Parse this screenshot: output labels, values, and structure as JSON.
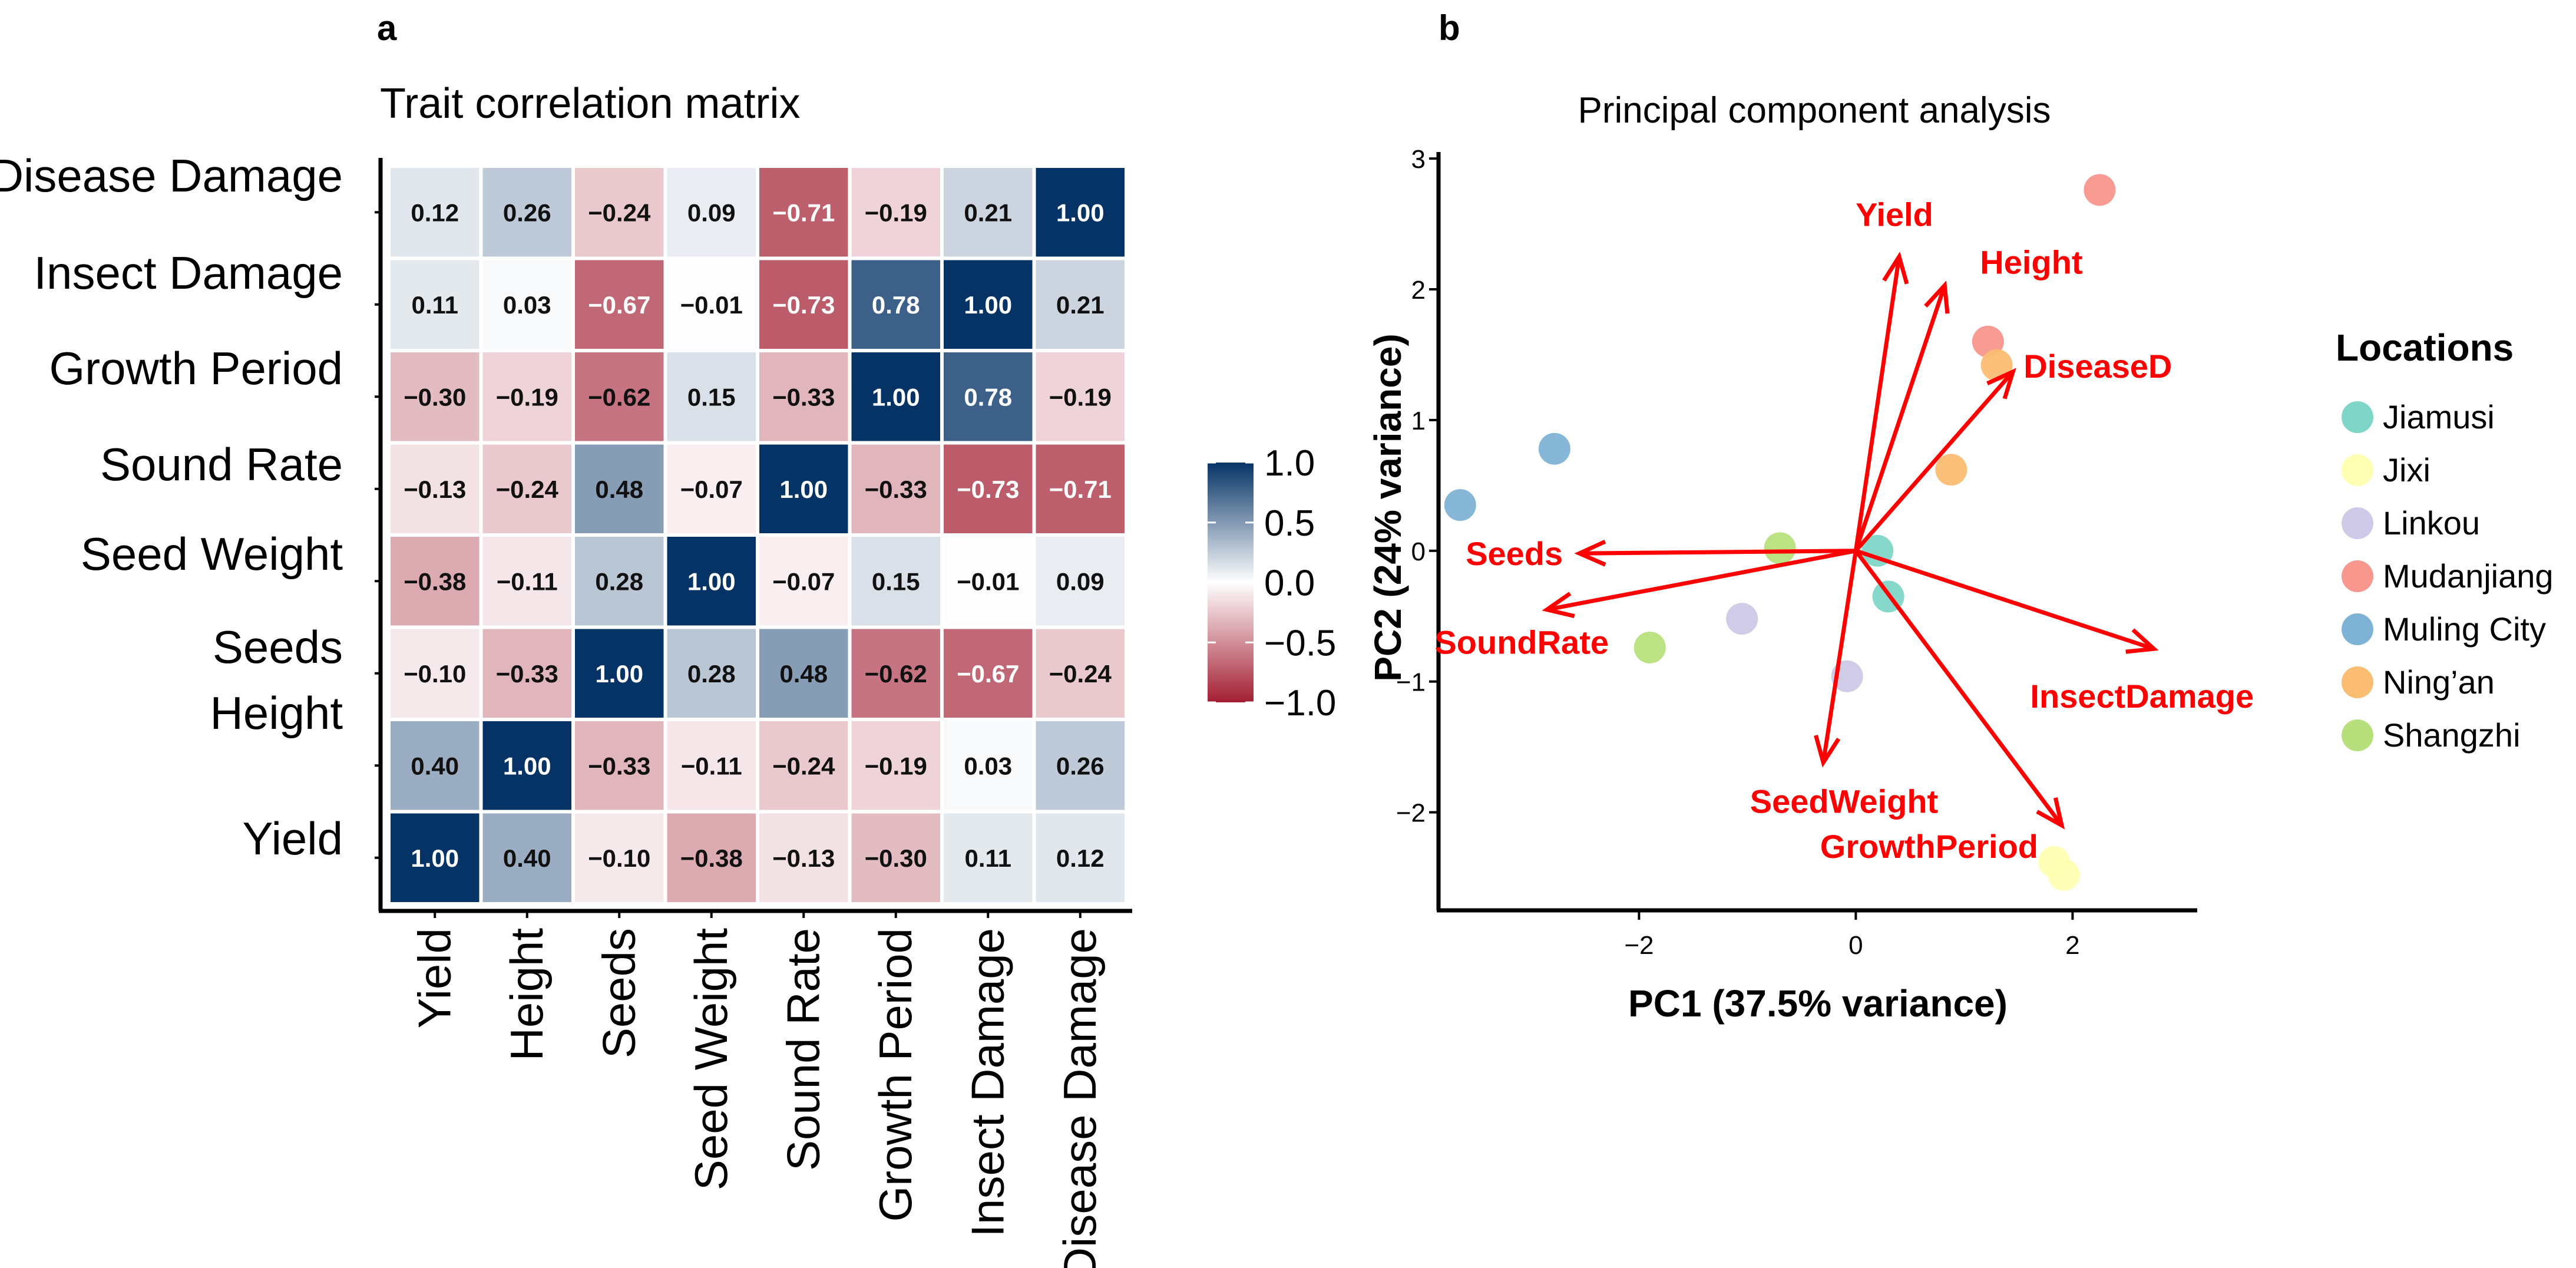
{
  "panels": {
    "a_label": "a",
    "b_label": "b"
  },
  "chart_data": [
    {
      "type": "heatmap",
      "title": "Trait correlation matrix",
      "row_labels_top_to_bottom": [
        "Disease Damage",
        "Insect Damage",
        "Growth Period",
        "Sound Rate",
        "Seed Weight",
        "Seeds",
        "Height",
        "Yield"
      ],
      "col_labels": [
        "Yield",
        "Height",
        "Seeds",
        "Seed Weight",
        "Sound Rate",
        "Growth Period",
        "Insect Damage",
        "Disease Damage"
      ],
      "values": [
        [
          0.12,
          0.26,
          -0.24,
          0.09,
          -0.71,
          -0.19,
          0.21,
          1.0
        ],
        [
          0.11,
          0.03,
          -0.67,
          -0.01,
          -0.73,
          0.78,
          1.0,
          0.21
        ],
        [
          -0.3,
          -0.19,
          -0.62,
          0.15,
          -0.33,
          1.0,
          0.78,
          -0.19
        ],
        [
          -0.13,
          -0.24,
          0.48,
          -0.07,
          1.0,
          -0.33,
          -0.73,
          -0.71
        ],
        [
          -0.38,
          -0.11,
          0.28,
          1.0,
          -0.07,
          0.15,
          -0.01,
          0.09
        ],
        [
          -0.1,
          -0.33,
          1.0,
          0.28,
          0.48,
          -0.62,
          -0.67,
          -0.24
        ],
        [
          0.4,
          1.0,
          -0.33,
          -0.11,
          -0.24,
          -0.19,
          0.03,
          0.26
        ],
        [
          1.0,
          0.4,
          -0.1,
          -0.38,
          -0.13,
          -0.3,
          0.11,
          0.12
        ]
      ],
      "colorbar": {
        "range": [
          -1.0,
          1.0
        ],
        "ticks": [
          "1.0",
          "0.5",
          "0.0",
          "−0.5",
          "−1.0"
        ],
        "low_color": "#a31e33",
        "mid_color": "#ffffff",
        "high_color": "#063366"
      }
    },
    {
      "type": "scatter",
      "subtype": "pca-biplot",
      "title": "Principal component analysis",
      "xlabel": "PC1 (37.5% variance)",
      "ylabel": "PC2 (24% variance)",
      "xlim": [
        -3.85,
        3.15
      ],
      "ylim": [
        -2.75,
        3.05
      ],
      "x_ticks": [
        "−2",
        "0",
        "2"
      ],
      "y_ticks": [
        "3",
        "2",
        "1",
        "0",
        "−1",
        "−2"
      ],
      "arrow_color": "#ff0000",
      "loadings": [
        {
          "label": "Yield",
          "x": 0.4,
          "y": 2.25
        },
        {
          "label": "Height",
          "x": 0.82,
          "y": 2.03
        },
        {
          "label": "DiseaseD",
          "x": 1.45,
          "y": 1.37
        },
        {
          "label": "Seeds",
          "x": -2.55,
          "y": -0.02
        },
        {
          "label": "SoundRate",
          "x": -2.85,
          "y": -0.45
        },
        {
          "label": "InsectDamage",
          "x": 2.75,
          "y": -0.75
        },
        {
          "label": "SeedWeight",
          "x": -0.3,
          "y": -1.62
        },
        {
          "label": "GrowthPeriod",
          "x": 1.9,
          "y": -2.1
        }
      ],
      "legend": {
        "title": "Locations",
        "entries": [
          {
            "name": "Jiamusi",
            "color": "#7fd6c8"
          },
          {
            "name": "Jixi",
            "color": "#ffffb3"
          },
          {
            "name": "Linkou",
            "color": "#cec9e6"
          },
          {
            "name": "Mudanjiang",
            "color": "#f8978d"
          },
          {
            "name": "Muling City",
            "color": "#7fb3d5"
          },
          {
            "name": "Ning’an",
            "color": "#fbbd72"
          },
          {
            "name": "Shangzhi",
            "color": "#b7e07c"
          }
        ]
      },
      "points": [
        {
          "location": "Jiamusi",
          "x": 0.2,
          "y": 0.0
        },
        {
          "location": "Jiamusi",
          "x": 0.3,
          "y": -0.35
        },
        {
          "location": "Jixi",
          "x": 1.83,
          "y": -2.38
        },
        {
          "location": "Jixi",
          "x": 1.92,
          "y": -2.48
        },
        {
          "location": "Linkou",
          "x": -1.05,
          "y": -0.52
        },
        {
          "location": "Linkou",
          "x": -0.08,
          "y": -0.96
        },
        {
          "location": "Mudanjiang",
          "x": 2.25,
          "y": 2.76
        },
        {
          "location": "Mudanjiang",
          "x": 1.22,
          "y": 1.6
        },
        {
          "location": "Muling City",
          "x": -3.65,
          "y": 0.35
        },
        {
          "location": "Muling City",
          "x": -2.78,
          "y": 0.78
        },
        {
          "location": "Ning’an",
          "x": 1.3,
          "y": 1.42
        },
        {
          "location": "Ning’an",
          "x": 0.88,
          "y": 0.62
        },
        {
          "location": "Shangzhi",
          "x": -0.7,
          "y": 0.02
        },
        {
          "location": "Shangzhi",
          "x": -1.9,
          "y": -0.74
        }
      ]
    }
  ]
}
